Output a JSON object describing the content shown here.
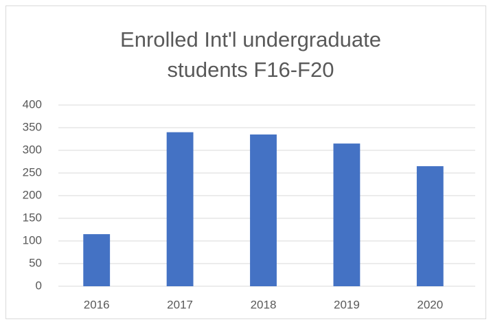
{
  "chart_data": {
    "type": "bar",
    "title": "Enrolled Int'l undergraduate students F16-F20",
    "categories": [
      "2016",
      "2017",
      "2018",
      "2019",
      "2020"
    ],
    "values": [
      115,
      340,
      335,
      315,
      265
    ],
    "color": "#4472c4",
    "ylim": [
      0,
      400
    ],
    "yticks": [
      0,
      50,
      100,
      150,
      200,
      250,
      300,
      350,
      400
    ],
    "grid": true
  }
}
